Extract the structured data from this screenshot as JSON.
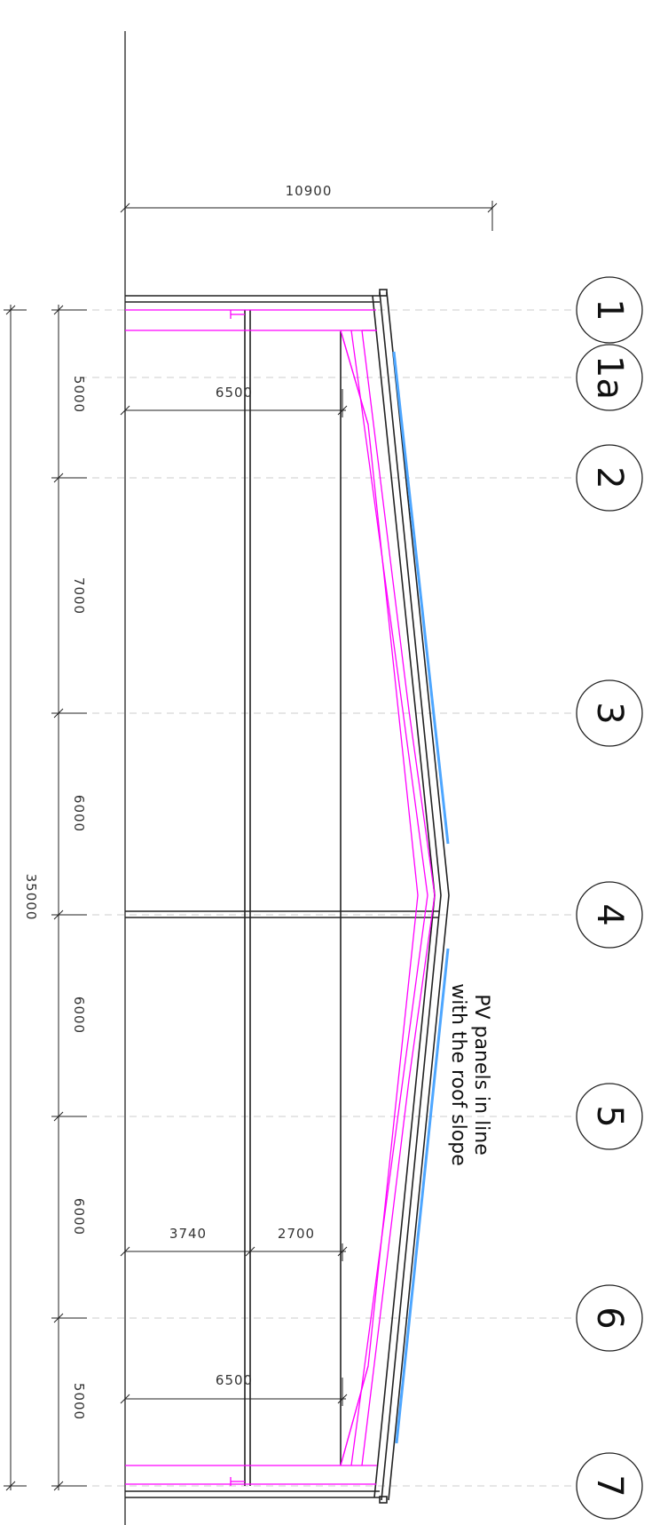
{
  "drawing": {
    "dimensions": {
      "width_total": "10900",
      "length_total": "35000",
      "bay_1_2": "5000",
      "bay_2_3": "7000",
      "bay_3_4": "6000",
      "bay_4_5": "6000",
      "bay_5_6": "6000",
      "bay_6_7": "5000",
      "inner_top": "6500",
      "inner_bottom": "6500",
      "inner_left_part": "3740",
      "inner_right_part": "2700"
    },
    "grid_labels": [
      "1",
      "1a",
      "2",
      "3",
      "4",
      "5",
      "6",
      "7"
    ],
    "note": {
      "line1": "PV panels in line",
      "line2": "with the roof slope"
    },
    "colors": {
      "structure": "#222222",
      "gridline": "#cccccc",
      "steel": "#ff00ff",
      "pv": "#4da6ff"
    }
  }
}
